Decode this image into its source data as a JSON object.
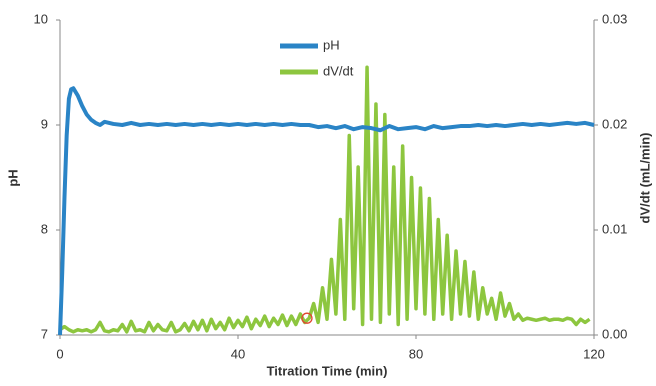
{
  "chart_data": {
    "type": "line",
    "xlabel": "Titration Time (min)",
    "ylabel": "pH",
    "y2label": "dV/dt  (mL/min)",
    "xlim": [
      0,
      120
    ],
    "xticks": [
      0,
      40,
      80,
      120
    ],
    "ylim": [
      7,
      10
    ],
    "yticks": [
      7,
      8,
      9,
      10
    ],
    "y2lim": [
      0,
      0.03
    ],
    "y2ticks": [
      {
        "value": 0,
        "label": "0.00"
      },
      {
        "value": 0.01,
        "label": "0.01"
      },
      {
        "value": 0.02,
        "label": "0.02"
      },
      {
        "value": 0.03,
        "label": "0.03"
      }
    ],
    "grid": false,
    "legend": "top",
    "series": [
      {
        "name": "pH",
        "color": "#2a84c6",
        "x": [
          0,
          0.5,
          1,
          1.5,
          2,
          2.5,
          3,
          4,
          5,
          6,
          7,
          8,
          9,
          10,
          12,
          14,
          16,
          18,
          20,
          22,
          24,
          26,
          28,
          30,
          32,
          34,
          36,
          38,
          40,
          42,
          44,
          46,
          48,
          50,
          52,
          54,
          56,
          58,
          60,
          62,
          64,
          66,
          68,
          70,
          72,
          74,
          76,
          78,
          80,
          82,
          84,
          86,
          88,
          90,
          92,
          94,
          96,
          98,
          100,
          102,
          104,
          106,
          108,
          110,
          112,
          114,
          116,
          118,
          120
        ],
        "values": [
          7,
          7.6,
          8.3,
          8.9,
          9.25,
          9.34,
          9.35,
          9.28,
          9.18,
          9.1,
          9.05,
          9.02,
          9.0,
          9.03,
          9.01,
          9.0,
          9.02,
          9.0,
          9.01,
          9.0,
          9.01,
          9.0,
          9.01,
          9.0,
          9.01,
          9.0,
          9.01,
          9.0,
          9.01,
          9.0,
          9.01,
          9.0,
          9.01,
          9.0,
          9.01,
          9.0,
          9.0,
          8.98,
          8.99,
          8.97,
          8.99,
          8.96,
          8.98,
          8.97,
          8.95,
          8.99,
          8.96,
          8.97,
          8.98,
          8.96,
          8.99,
          8.97,
          8.98,
          8.99,
          8.99,
          9.0,
          8.99,
          9.0,
          8.99,
          9.0,
          9.01,
          9.0,
          9.01,
          9.0,
          9.01,
          9.02,
          9.01,
          9.02,
          9.0
        ]
      },
      {
        "name": "dV/dt",
        "color": "#8dc63f",
        "axis": "y2",
        "x": [
          0,
          1,
          2,
          3,
          4,
          5,
          6,
          7,
          8,
          9,
          10,
          11,
          12,
          13,
          14,
          15,
          16,
          17,
          18,
          19,
          20,
          21,
          22,
          23,
          24,
          25,
          26,
          27,
          28,
          29,
          30,
          31,
          32,
          33,
          34,
          35,
          36,
          37,
          38,
          39,
          40,
          41,
          42,
          43,
          44,
          45,
          46,
          47,
          48,
          49,
          50,
          51,
          52,
          53,
          54,
          55,
          56,
          57,
          58,
          59,
          60,
          61,
          62,
          63,
          64,
          65,
          66,
          67,
          68,
          69,
          70,
          71,
          72,
          73,
          74,
          75,
          76,
          77,
          78,
          79,
          80,
          81,
          82,
          83,
          84,
          85,
          86,
          87,
          88,
          89,
          90,
          91,
          92,
          93,
          94,
          95,
          96,
          97,
          98,
          99,
          100,
          101,
          102,
          103,
          104,
          105,
          106,
          107,
          108,
          109,
          110,
          111,
          112,
          113,
          114,
          115,
          116,
          117,
          118,
          119
        ],
        "values": [
          0.0005,
          0.0008,
          0.0005,
          0.0003,
          0.0005,
          0.0004,
          0.0005,
          0.0003,
          0.0005,
          0.0012,
          0.0004,
          0.0003,
          0.0005,
          0.0004,
          0.001,
          0.0003,
          0.0013,
          0.0004,
          0.0005,
          0.0003,
          0.0012,
          0.0004,
          0.001,
          0.0005,
          0.0004,
          0.0012,
          0.0003,
          0.0005,
          0.0011,
          0.0004,
          0.0013,
          0.0005,
          0.0014,
          0.0004,
          0.0015,
          0.0006,
          0.0012,
          0.0005,
          0.0016,
          0.0007,
          0.0014,
          0.0008,
          0.0017,
          0.0006,
          0.0015,
          0.0009,
          0.0018,
          0.0008,
          0.0016,
          0.001,
          0.0019,
          0.0009,
          0.0018,
          0.001,
          0.002,
          0.0012,
          0.0016,
          0.003,
          0.0012,
          0.0045,
          0.0015,
          0.0072,
          0.002,
          0.011,
          0.0015,
          0.019,
          0.0025,
          0.016,
          0.001,
          0.0255,
          0.0015,
          0.022,
          0.0012,
          0.021,
          0.002,
          0.016,
          0.001,
          0.018,
          0.0015,
          0.015,
          0.0025,
          0.014,
          0.002,
          0.013,
          0.0015,
          0.011,
          0.002,
          0.0095,
          0.0015,
          0.008,
          0.002,
          0.007,
          0.0018,
          0.006,
          0.0015,
          0.0045,
          0.002,
          0.0035,
          0.0015,
          0.004,
          0.0018,
          0.003,
          0.0015,
          0.002,
          0.0014,
          0.0016,
          0.0015,
          0.0014,
          0.0015,
          0.0016,
          0.0014,
          0.0015,
          0.0015,
          0.0014,
          0.0016,
          0.0015,
          0.001,
          0.0015,
          0.0012,
          0.0015
        ]
      }
    ],
    "highlight": {
      "x": 55.5,
      "y": 0.0016,
      "axis": "y2",
      "color": "#e0452f"
    }
  }
}
